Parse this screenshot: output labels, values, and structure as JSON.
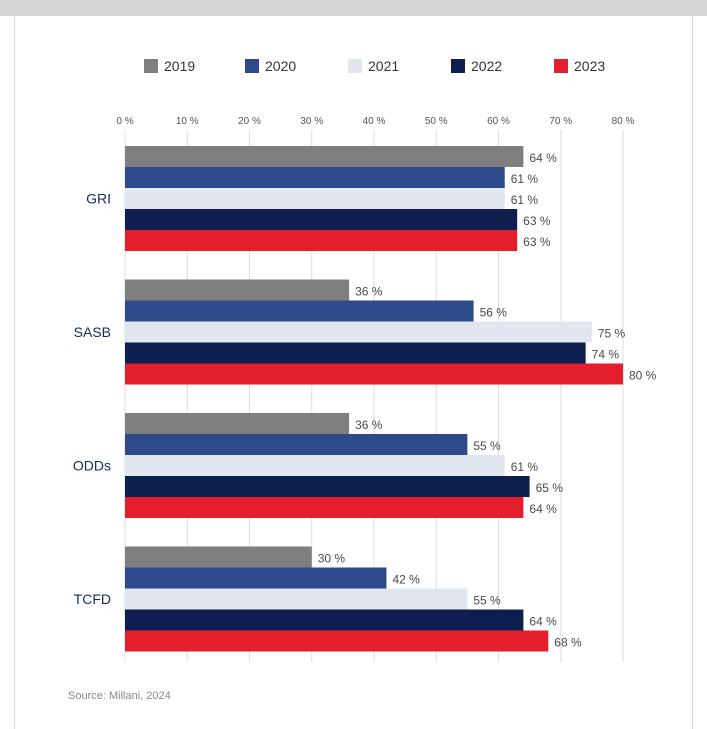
{
  "chart_data": {
    "type": "bar",
    "orientation": "horizontal",
    "categories": [
      "GRI",
      "SASB",
      "ODDs",
      "TCFD"
    ],
    "series": [
      {
        "name": "2019",
        "color": "#7f7f7f",
        "values": [
          64,
          36,
          36,
          30
        ]
      },
      {
        "name": "2020",
        "color": "#2d4b8b",
        "values": [
          61,
          56,
          55,
          42
        ]
      },
      {
        "name": "2021",
        "color": "#e2e6ef",
        "values": [
          61,
          75,
          61,
          55
        ]
      },
      {
        "name": "2022",
        "color": "#0c1f4f",
        "values": [
          63,
          74,
          65,
          64
        ]
      },
      {
        "name": "2023",
        "color": "#e41e2b",
        "values": [
          63,
          80,
          64,
          68
        ]
      }
    ],
    "xlim": [
      0,
      80
    ],
    "xticks": [
      0,
      10,
      20,
      30,
      40,
      50,
      60,
      70,
      80
    ],
    "tick_suffix": " %",
    "value_suffix": " %",
    "grid": true,
    "legend": "top"
  },
  "source": "Source: Millani, 2024"
}
